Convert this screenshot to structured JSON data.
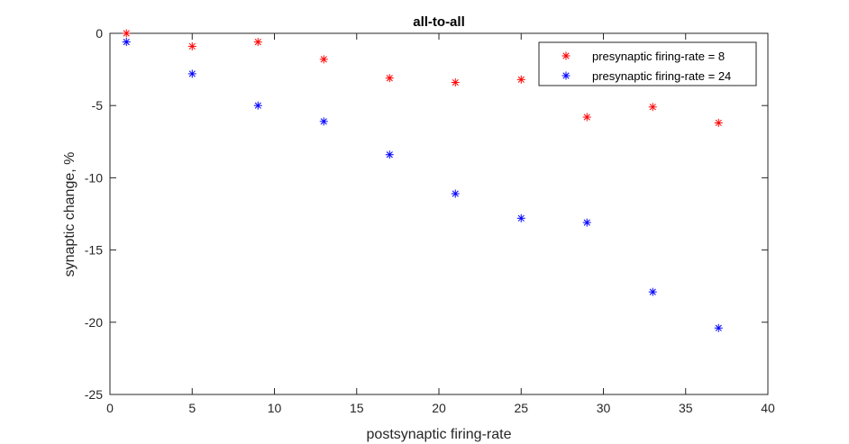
{
  "chart_data": {
    "type": "scatter",
    "title": "all-to-all",
    "xlabel": "postsynaptic firing-rate",
    "ylabel": "synaptic change, %",
    "xlim": [
      0,
      40
    ],
    "ylim": [
      -25,
      0
    ],
    "xticks": [
      0,
      5,
      10,
      15,
      20,
      25,
      30,
      35,
      40
    ],
    "yticks": [
      0,
      -5,
      -10,
      -15,
      -20,
      -25
    ],
    "grid": false,
    "legend_position": "top-right",
    "marker": "*",
    "series": [
      {
        "name": "presynaptic firing-rate = 8",
        "color": "#ff0000",
        "x": [
          1,
          5,
          9,
          13,
          17,
          21,
          25,
          29,
          33,
          37
        ],
        "y": [
          0,
          -0.9,
          -0.6,
          -1.8,
          -3.1,
          -3.4,
          -3.2,
          -5.8,
          -5.1,
          -6.2
        ]
      },
      {
        "name": "presynaptic firing-rate = 24",
        "color": "#0000ff",
        "x": [
          1,
          5,
          9,
          13,
          17,
          21,
          25,
          29,
          33,
          37
        ],
        "y": [
          -0.6,
          -2.8,
          -5.0,
          -6.1,
          -8.4,
          -11.1,
          -12.8,
          -13.1,
          -17.9,
          -20.4
        ]
      }
    ]
  }
}
